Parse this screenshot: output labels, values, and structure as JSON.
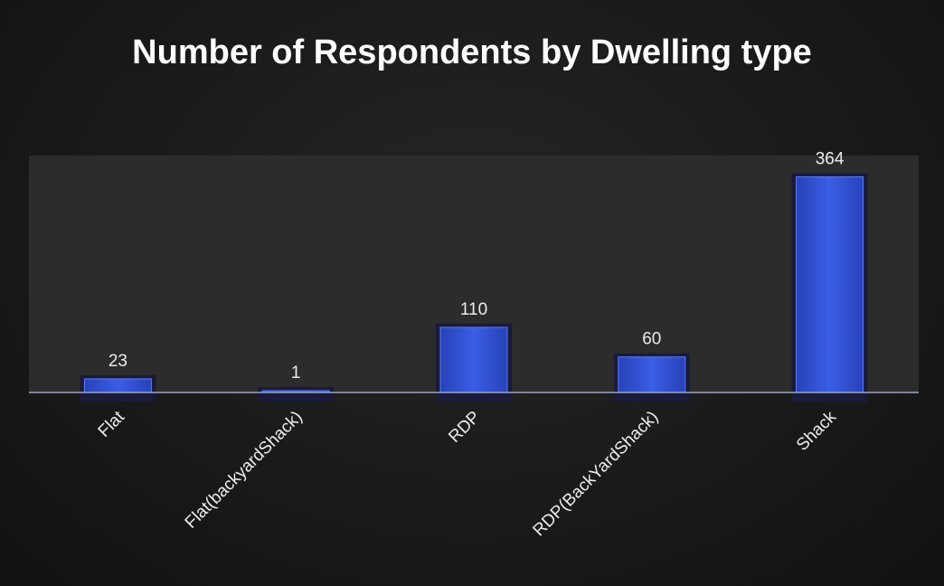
{
  "chart_data": {
    "type": "bar",
    "title": "Number of Respondents by Dwelling type",
    "categories": [
      "Flat",
      "Flat(backyardShack)",
      "RDP",
      "RDP(BackYardShack)",
      "Shack"
    ],
    "values": [
      23,
      1,
      110,
      60,
      364
    ],
    "xlabel": "",
    "ylabel": "",
    "ylim": [
      0,
      400
    ],
    "grid": false,
    "legend": "none",
    "data_labels": true,
    "colors": {
      "bar": "#2f4fd0",
      "bar_edge": "#1a1a3a",
      "plot_bg": "#2b2b2b",
      "axis": "#9aa6c0",
      "text": "#ececec"
    }
  }
}
